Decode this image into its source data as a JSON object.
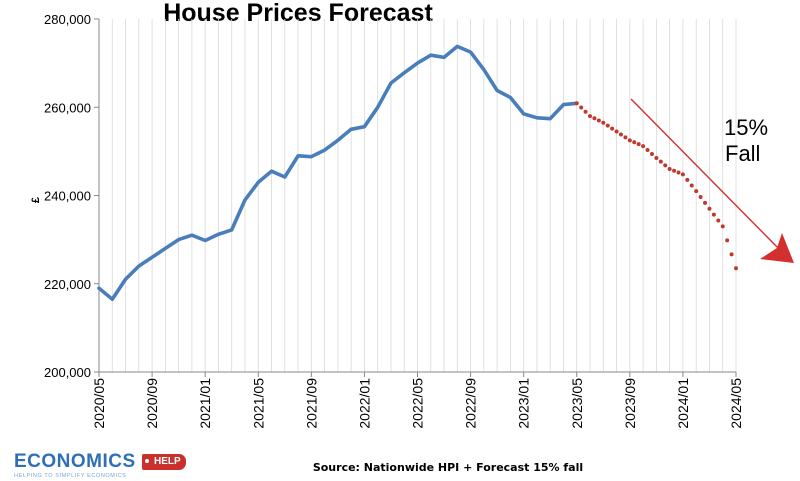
{
  "chart_data": {
    "type": "line",
    "title": "House Prices Forecast",
    "ylabel": "£",
    "xlabel": "",
    "ylim": [
      200000,
      280000
    ],
    "yticks": [
      "200,000",
      "220,000",
      "240,000",
      "260,000",
      "280,000"
    ],
    "ytick_values": [
      200000,
      220000,
      240000,
      260000,
      280000
    ],
    "x_tick_labels": [
      "2020/05",
      "2020/09",
      "2021/01",
      "2021/05",
      "2021/09",
      "2022/01",
      "2022/05",
      "2022/09",
      "2023/01",
      "2023/05",
      "2023/09",
      "2024/01",
      "2024/05"
    ],
    "months_total": 49,
    "grid": "vertical",
    "series": [
      {
        "name": "Nationwide HPI",
        "color": "#4a7ebb",
        "style": "solid",
        "start_month_index": 0,
        "values": [
          219000,
          216500,
          221000,
          224000,
          226000,
          228000,
          230000,
          231000,
          229800,
          231200,
          232200,
          239000,
          243000,
          245500,
          244200,
          249000,
          248800,
          250300,
          252500,
          255000,
          255600,
          260000,
          265500,
          267800,
          270000,
          271800,
          271300,
          273800,
          272500,
          268500,
          263800,
          262200,
          258500,
          257600,
          257400,
          260600,
          260900
        ]
      },
      {
        "name": "Forecast 15% fall",
        "color": "#c0392b",
        "style": "dotted",
        "start_month_index": 36,
        "values": [
          260900,
          258000,
          256500,
          254500,
          252500,
          251200,
          248500,
          246000,
          244800,
          241000,
          237000,
          233000,
          223500
        ]
      }
    ],
    "annotations": [
      {
        "text_line1": "15%",
        "text_line2": "Fall",
        "arrow_color": "#d32f2f"
      }
    ],
    "source": "Source: Nationwide HPI + Forecast 15% fall"
  },
  "branding": {
    "logo_word": "ECONOMICS",
    "logo_badge": "HELP",
    "logo_tagline": "HELPING TO SIMPLIFY ECONOMICS",
    "primary_color": "#2f6fb5",
    "badge_color": "#c9302c"
  }
}
